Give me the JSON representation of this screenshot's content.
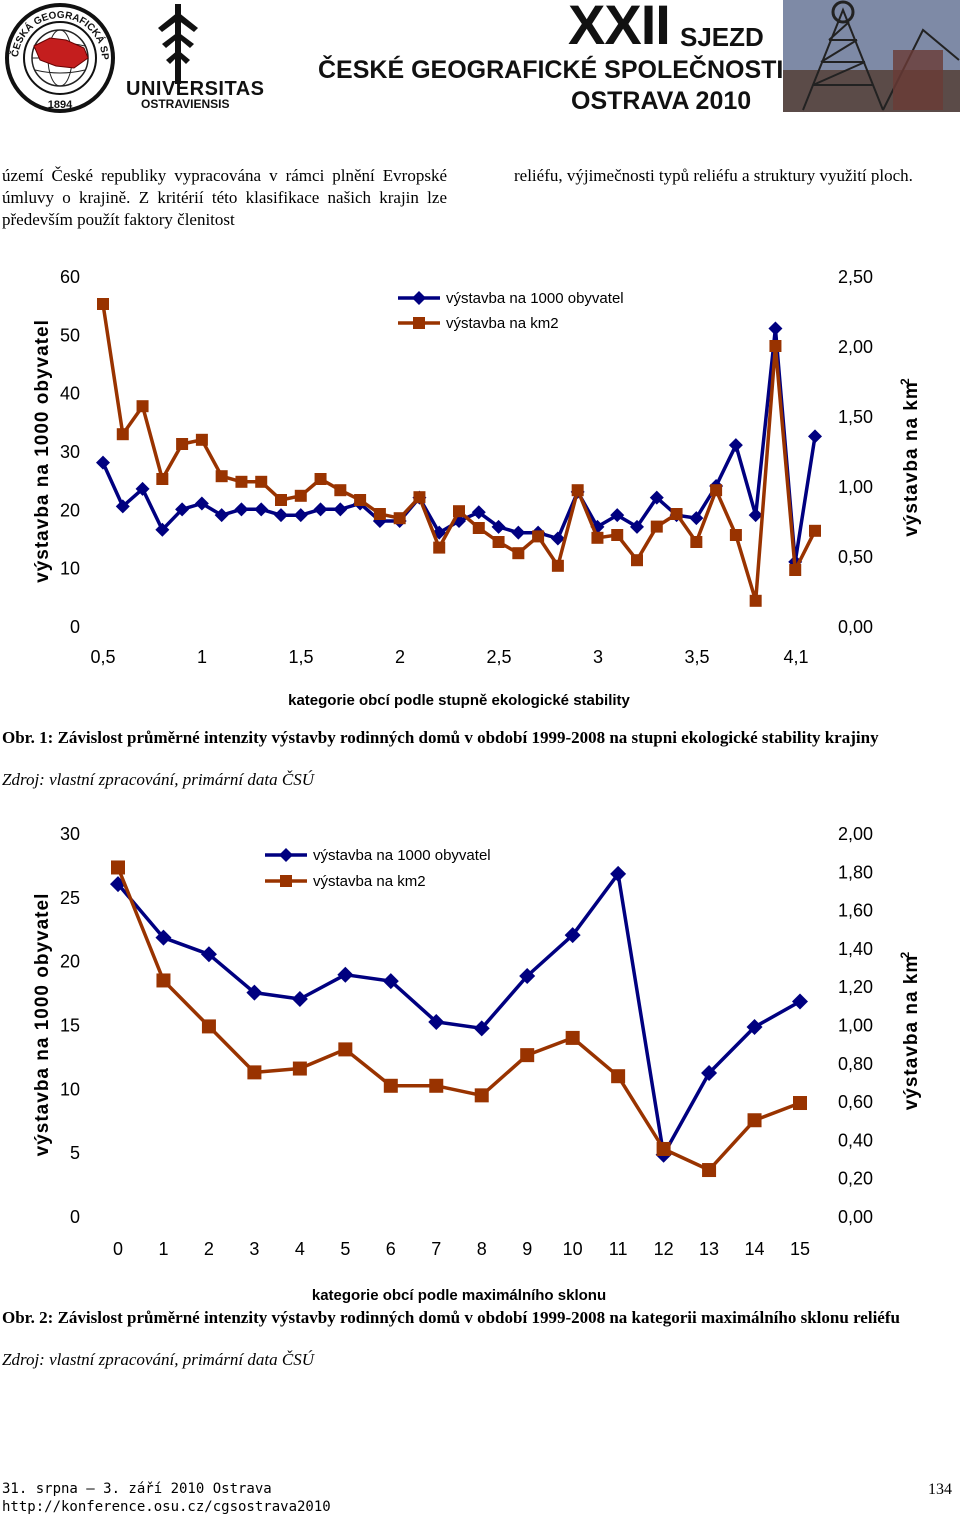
{
  "header": {
    "society_logo_text": "ČESKÁ GEOGRAFICKÁ SPOLEČNOST",
    "society_logo_year": "1894",
    "university_line1": "UNIVERSITAS",
    "university_line2": "OSTRAVIENSIS",
    "roman": "XXII",
    "sjezd": "SJEZD",
    "society_name": "ČESKÉ GEOGRAFICKÉ SPOLEČNOSTI",
    "venue": "OSTRAVA 2010"
  },
  "text": {
    "left_col": "území České republiky vypracována v rámci plnění Evropské úmluvy o krajině. Z kritérií této klasifikace našich krajin lze především použít faktory členitost",
    "right_col": "reliéfu, výjimečnosti typů reliéfu a struktury využití ploch."
  },
  "colors": {
    "navy": "#000080",
    "rust": "#993300"
  },
  "chart_data": [
    {
      "type": "line",
      "title": "",
      "xlabel": "kategorie obcí podle stupně ekologické stability",
      "ylabel": "výstavba na 1000 obyvatel",
      "y2label": "výstavba na km",
      "y2label_sup": "2",
      "ylim": [
        0,
        60
      ],
      "y2lim": [
        0,
        2.5
      ],
      "y_ticks": [
        "0",
        "10",
        "20",
        "30",
        "40",
        "50",
        "60"
      ],
      "y2_ticks": [
        "0,00",
        "0,50",
        "1,00",
        "1,50",
        "2,00",
        "2,50"
      ],
      "x_ticks": [
        "0,5",
        "1",
        "1,5",
        "2",
        "2,5",
        "3",
        "3,5",
        "4,1"
      ],
      "legend": [
        "výstavba na 1000 obyvatel",
        "výstavba na km2"
      ],
      "series": [
        {
          "name": "výstavba na 1000 obyvatel",
          "axis": "left",
          "values": [
            28,
            20.5,
            23.5,
            16.5,
            20,
            21,
            19,
            20,
            20,
            19,
            19,
            20,
            20,
            21,
            18,
            18,
            22,
            16,
            18,
            19.5,
            17,
            16,
            16,
            15,
            23,
            17,
            19,
            17,
            22,
            19,
            18.5,
            24,
            31,
            19,
            51,
            11,
            32.5
          ]
        },
        {
          "name": "výstavba na km2",
          "axis": "right",
          "values": [
            2.3,
            1.37,
            1.57,
            1.05,
            1.3,
            1.33,
            1.07,
            1.03,
            1.03,
            0.9,
            0.93,
            1.05,
            0.97,
            0.9,
            0.8,
            0.77,
            0.92,
            0.56,
            0.82,
            0.7,
            0.6,
            0.52,
            0.64,
            0.43,
            0.97,
            0.63,
            0.65,
            0.47,
            0.71,
            0.8,
            0.6,
            0.97,
            0.65,
            0.18,
            2.0,
            0.4,
            0.68
          ]
        }
      ]
    },
    {
      "type": "line",
      "title": "",
      "xlabel": "kategorie obcí podle maximálního sklonu",
      "ylabel": "výstavba na 1000 obyvatel",
      "y2label": "výstavba na km",
      "y2label_sup": "2",
      "ylim": [
        0,
        30
      ],
      "y2lim": [
        0,
        2.0
      ],
      "y_ticks": [
        "0",
        "5",
        "10",
        "15",
        "20",
        "25",
        "30"
      ],
      "y2_ticks": [
        "0,00",
        "0,20",
        "0,40",
        "0,60",
        "0,80",
        "1,00",
        "1,20",
        "1,40",
        "1,60",
        "1,80",
        "2,00"
      ],
      "x_ticks": [
        "0",
        "1",
        "2",
        "3",
        "4",
        "5",
        "6",
        "7",
        "8",
        "9",
        "10",
        "11",
        "12",
        "13",
        "14",
        "15"
      ],
      "legend": [
        "výstavba na 1000 obyvatel",
        "výstavba na km2"
      ],
      "series": [
        {
          "name": "výstavba na 1000 obyvatel",
          "axis": "left",
          "values": [
            26,
            21.8,
            20.5,
            17.5,
            17,
            18.9,
            18.4,
            15.2,
            14.7,
            18.8,
            22,
            26.8,
            4.8,
            11.2,
            14.8,
            16.8
          ]
        },
        {
          "name": "výstavba na km2",
          "axis": "right",
          "values": [
            1.82,
            1.23,
            0.99,
            0.75,
            0.77,
            0.87,
            0.68,
            0.68,
            0.63,
            0.84,
            0.93,
            0.73,
            0.35,
            0.24,
            0.5,
            0.59
          ]
        }
      ]
    }
  ],
  "captions": {
    "fig1": "Obr. 1: Závislost průměrné intenzity výstavby rodinných domů v období 1999-2008 na stupni ekologické stability krajiny",
    "fig1_source": "Zdroj: vlastní zpracování, primární data ČSÚ",
    "fig2": "Obr. 2: Závislost průměrné intenzity výstavby rodinných domů v období 1999-2008 na kategorii maximálního sklonu reliéfu",
    "fig2_source": "Zdroj: vlastní zpracování, primární data ČSÚ"
  },
  "footer": {
    "dates": "31. srpna – 3. září 2010 Ostrava",
    "url": "http://konference.osu.cz/cgsostrava2010",
    "page_number": "134"
  }
}
